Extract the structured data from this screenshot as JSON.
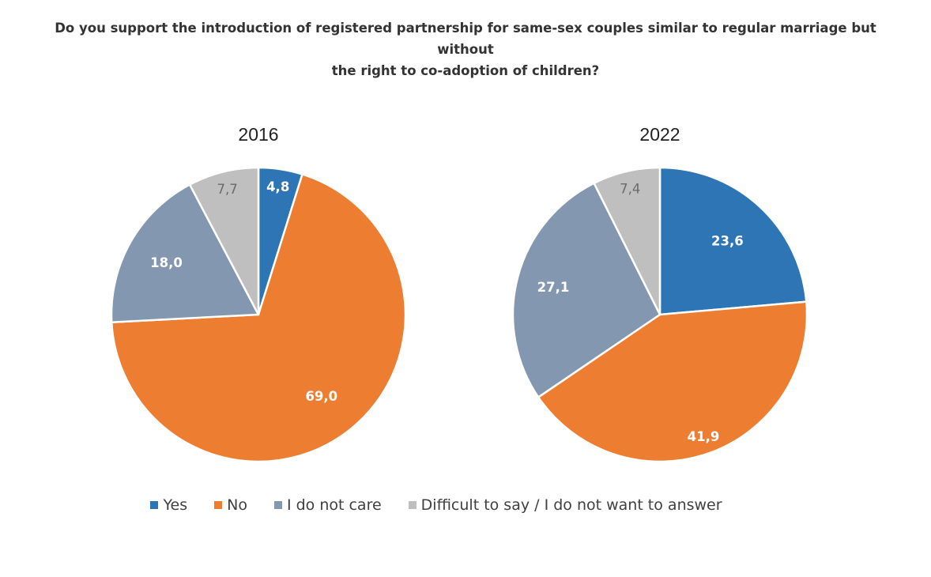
{
  "title": {
    "line1": "Do you support the introduction of registered partnership for same-sex couples similar to regular marriage but without",
    "line2": "the right to co-adoption of children?"
  },
  "legend": [
    {
      "label": "Yes",
      "color": "#2e75b6"
    },
    {
      "label": "No",
      "color": "#ed7d31"
    },
    {
      "label": "I do not care",
      "color": "#8497b0"
    },
    {
      "label": "Difficult to say / I do not want to answer",
      "color": "#bfbfbf"
    }
  ],
  "chart_data": [
    {
      "type": "pie",
      "title": "2016",
      "categories": [
        "Yes",
        "No",
        "I do not care",
        "Difficult to say / I do not want to answer"
      ],
      "values": [
        4.8,
        69.0,
        18.0,
        7.7
      ],
      "labels": [
        "4,8",
        "69,0",
        "18,0",
        "7,7"
      ],
      "colors": [
        "#2e75b6",
        "#ed7d31",
        "#8497b0",
        "#bfbfbf"
      ],
      "label_colors": [
        "#ffffff",
        "#ffffff",
        "#ffffff",
        "#6b6b6b"
      ]
    },
    {
      "type": "pie",
      "title": "2022",
      "categories": [
        "Yes",
        "No",
        "I do not care",
        "Difficult to say / I do not want to answer"
      ],
      "values": [
        23.6,
        41.9,
        27.1,
        7.4
      ],
      "labels": [
        "23,6",
        "41,9",
        "27,1",
        "7,4"
      ],
      "colors": [
        "#2e75b6",
        "#ed7d31",
        "#8497b0",
        "#bfbfbf"
      ],
      "label_colors": [
        "#ffffff",
        "#ffffff",
        "#ffffff",
        "#6b6b6b"
      ]
    }
  ]
}
